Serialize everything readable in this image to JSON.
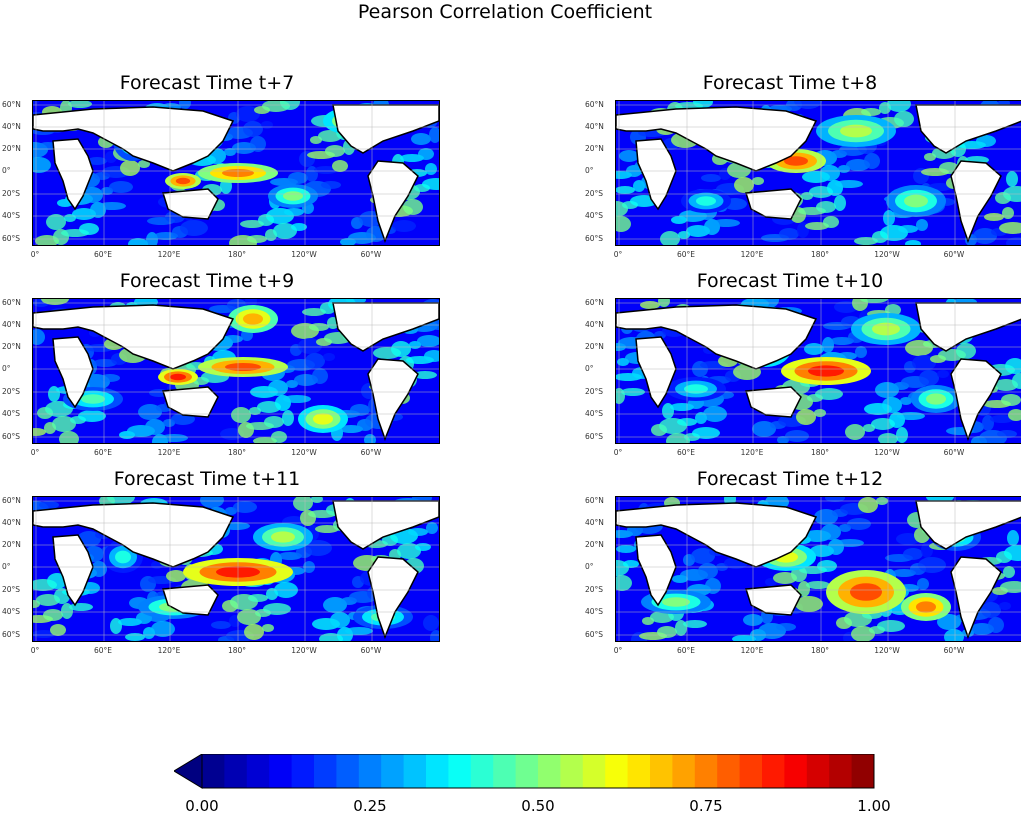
{
  "chart_data": {
    "type": "heatmap",
    "title": "Pearson Correlation Coefficient",
    "panels": [
      {
        "title": "Forecast Time t+7"
      },
      {
        "title": "Forecast Time t+8"
      },
      {
        "title": "Forecast Time t+9"
      },
      {
        "title": "Forecast Time t+10"
      },
      {
        "title": "Forecast Time t+11"
      },
      {
        "title": "Forecast Time t+12"
      }
    ],
    "lat_ticks": [
      "60°N",
      "40°N",
      "20°N",
      "0°",
      "20°S",
      "40°S",
      "60°S"
    ],
    "lon_ticks": [
      "0°",
      "60°E",
      "120°E",
      "180°",
      "120°W",
      "60°W"
    ],
    "colorbar": {
      "colormap": "jet",
      "range": [
        0.0,
        1.0
      ],
      "extend": "min",
      "ticks": [
        "0.00",
        "0.25",
        "0.50",
        "0.75",
        "1.00"
      ]
    }
  }
}
